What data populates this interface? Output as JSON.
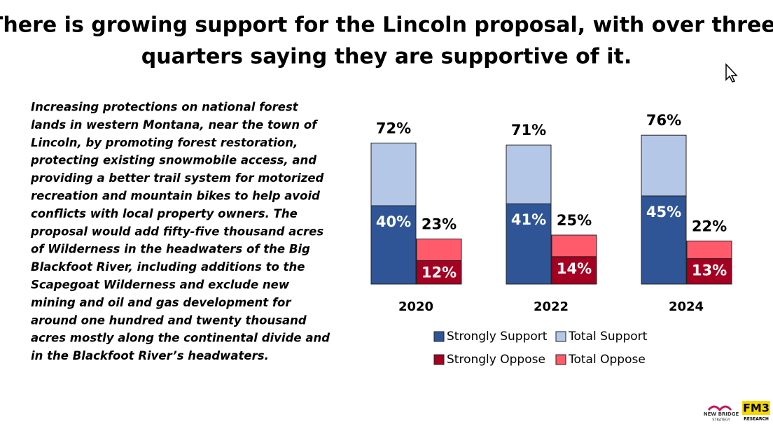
{
  "title": [
    "There is growing support for the Lincoln proposal, with over three-",
    "quarters saying they are supportive of it."
  ],
  "description": [
    "Increasing protections on national forest",
    "lands in western Montana, near the town of",
    "Lincoln, by promoting forest restoration,",
    "protecting existing snowmobile access, and",
    "providing a better trail system for motorized",
    "recreation and mountain bikes to help avoid",
    "conflicts with local property owners.  The",
    "proposal would add fifty-five thousand acres",
    "of Wilderness in the headwaters of the Big",
    "Blackfoot River, including additions to the",
    "Scapegoat Wilderness and exclude new",
    "mining and oil and gas development for",
    "around one hundred and twenty thousand",
    "acres mostly along the continental divide and",
    "in the Blackfoot River’s headwaters."
  ],
  "logos": [
    "NEW BRIDGE",
    "STRATEGY",
    "FM3",
    "RESEARCH"
  ],
  "chart_data": {
    "type": "bar",
    "categories": [
      "2020",
      "2022",
      "2024"
    ],
    "series": [
      {
        "name": "Strongly Support",
        "color": "#2f5597",
        "values": [
          40,
          41,
          45
        ],
        "value_labels": [
          "40%",
          "41%",
          "45%"
        ]
      },
      {
        "name": "Total Support",
        "color": "#b4c7e7",
        "values": [
          72,
          71,
          76
        ],
        "value_labels": [
          "72%",
          "71%",
          "76%"
        ]
      },
      {
        "name": "Strongly Oppose",
        "color": "#a50021",
        "values": [
          12,
          14,
          13
        ],
        "value_labels": [
          "12%",
          "14%",
          "13%"
        ]
      },
      {
        "name": "Total Oppose",
        "color": "#ff5b6b",
        "values": [
          23,
          25,
          22
        ],
        "value_labels": [
          "23%",
          "25%",
          "22%"
        ]
      }
    ]
  }
}
